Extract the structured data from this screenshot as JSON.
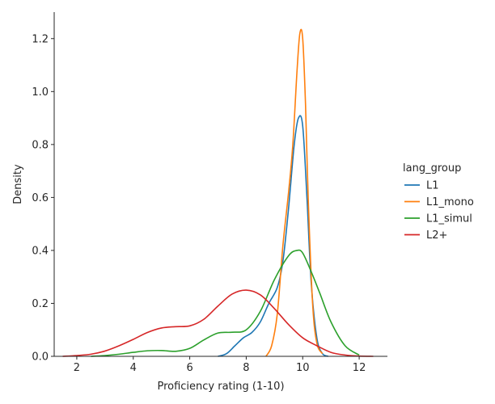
{
  "chart_data": {
    "type": "line",
    "xlabel": "Proficiency rating (1-10)",
    "ylabel": "Density",
    "xlim": [
      1.2,
      13.0
    ],
    "ylim": [
      0.0,
      1.3
    ],
    "xticks": [
      2,
      4,
      6,
      8,
      10,
      12
    ],
    "yticks": [
      0.0,
      0.2,
      0.4,
      0.6,
      0.8,
      1.0,
      1.2
    ],
    "xtick_labels": [
      "2",
      "4",
      "6",
      "8",
      "10",
      "12"
    ],
    "ytick_labels": [
      "0.0",
      "0.2",
      "0.4",
      "0.6",
      "0.8",
      "1.0",
      "1.2"
    ],
    "grid": false,
    "legend": {
      "title": "lang_group",
      "placement": "right"
    },
    "series": [
      {
        "name": "L1",
        "color": "#1f77b4",
        "x": [
          7.0,
          7.3,
          7.6,
          7.9,
          8.2,
          8.5,
          8.8,
          9.1,
          9.3,
          9.5,
          9.7,
          9.85,
          10.0,
          10.15,
          10.3,
          10.5,
          10.7,
          10.9
        ],
        "y": [
          0.0,
          0.01,
          0.04,
          0.07,
          0.09,
          0.13,
          0.2,
          0.26,
          0.36,
          0.56,
          0.8,
          0.9,
          0.87,
          0.6,
          0.28,
          0.07,
          0.01,
          0.0
        ]
      },
      {
        "name": "L1_mono",
        "color": "#ff7f0e",
        "x": [
          8.7,
          8.9,
          9.1,
          9.3,
          9.5,
          9.65,
          9.8,
          9.9,
          10.0,
          10.1,
          10.2,
          10.35,
          10.5,
          10.7
        ],
        "y": [
          0.0,
          0.04,
          0.16,
          0.42,
          0.62,
          0.8,
          1.08,
          1.22,
          1.2,
          0.95,
          0.58,
          0.2,
          0.05,
          0.01
        ]
      },
      {
        "name": "L1_simul",
        "color": "#2ca02c",
        "x": [
          2.5,
          3.0,
          3.5,
          4.0,
          4.5,
          5.0,
          5.5,
          6.0,
          6.5,
          7.0,
          7.5,
          8.0,
          8.5,
          9.0,
          9.5,
          9.8,
          10.0,
          10.3,
          10.6,
          11.0,
          11.5,
          12.0
        ],
        "y": [
          0.0,
          0.003,
          0.008,
          0.015,
          0.021,
          0.022,
          0.019,
          0.03,
          0.062,
          0.088,
          0.091,
          0.1,
          0.17,
          0.29,
          0.38,
          0.4,
          0.39,
          0.32,
          0.24,
          0.13,
          0.04,
          0.005
        ]
      },
      {
        "name": "L2+",
        "color": "#d62728",
        "x": [
          1.5,
          2.0,
          2.5,
          3.0,
          3.5,
          4.0,
          4.5,
          5.0,
          5.5,
          6.0,
          6.5,
          7.0,
          7.5,
          8.0,
          8.5,
          9.0,
          9.5,
          10.0,
          10.5,
          11.0,
          11.5,
          12.0,
          12.5
        ],
        "y": [
          0.0,
          0.003,
          0.008,
          0.02,
          0.04,
          0.064,
          0.09,
          0.107,
          0.112,
          0.115,
          0.14,
          0.19,
          0.235,
          0.25,
          0.232,
          0.18,
          0.12,
          0.07,
          0.04,
          0.015,
          0.005,
          0.001,
          0.0
        ]
      }
    ]
  }
}
